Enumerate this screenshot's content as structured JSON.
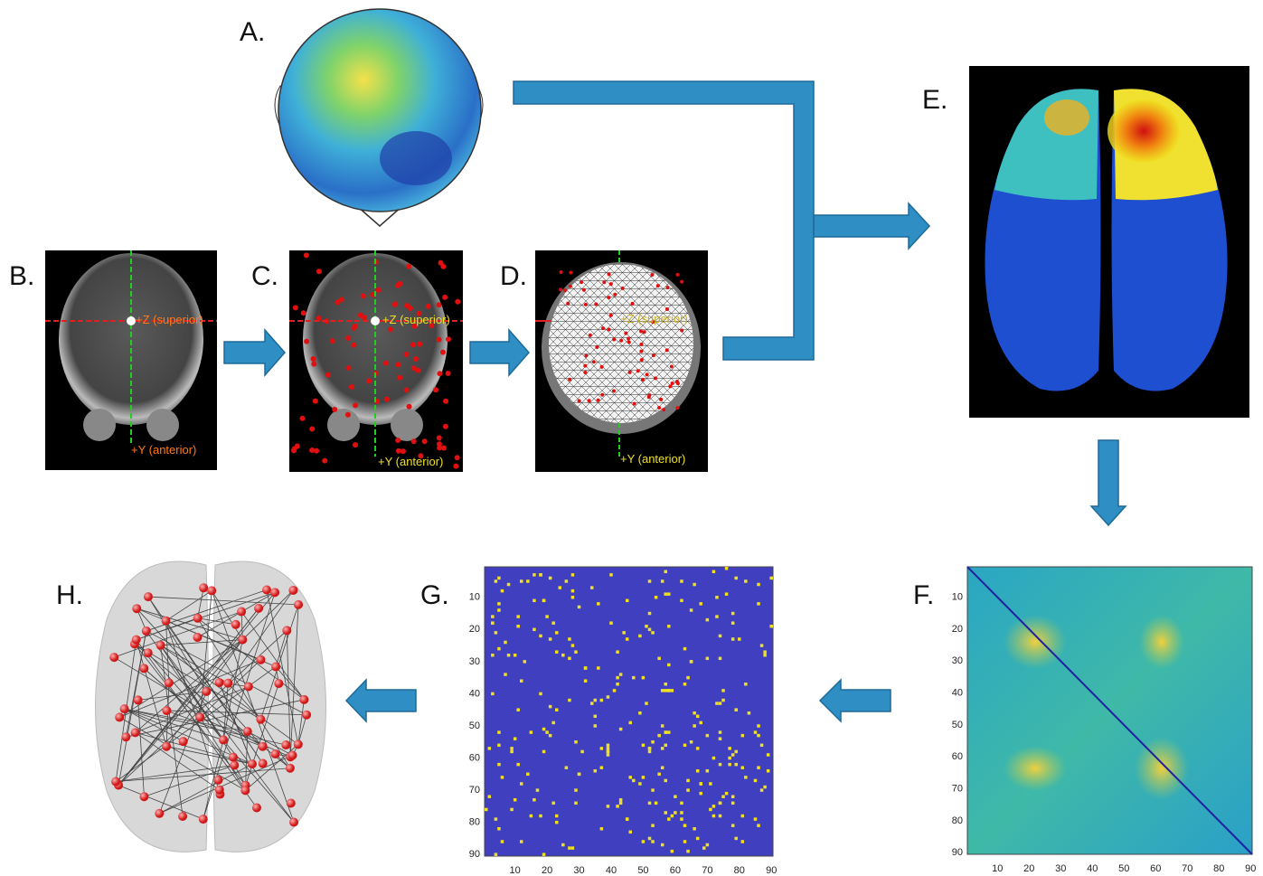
{
  "panels": {
    "A": {
      "label": "A."
    },
    "B": {
      "label": "B.",
      "annotations": [
        "+Z (superior)",
        "+Y (anterior)"
      ]
    },
    "C": {
      "label": "C.",
      "annotations": [
        "+Z (superior)",
        "+Y (anterior)"
      ]
    },
    "D": {
      "label": "D.",
      "annotations": [
        "+Z (superior)",
        "+Y (anterior)"
      ]
    },
    "E": {
      "label": "E."
    },
    "F": {
      "label": "F.",
      "yticks": [
        10,
        20,
        30,
        40,
        50,
        60,
        70,
        80,
        90
      ],
      "xticks": [
        10,
        20,
        30,
        40,
        50,
        60,
        70,
        80,
        90
      ]
    },
    "G": {
      "label": "G.",
      "yticks": [
        10,
        20,
        30,
        40,
        50,
        60,
        70,
        80,
        90
      ],
      "xticks": [
        10,
        20,
        30,
        40,
        50,
        60,
        70,
        80,
        90
      ]
    },
    "H": {
      "label": "H."
    }
  }
}
